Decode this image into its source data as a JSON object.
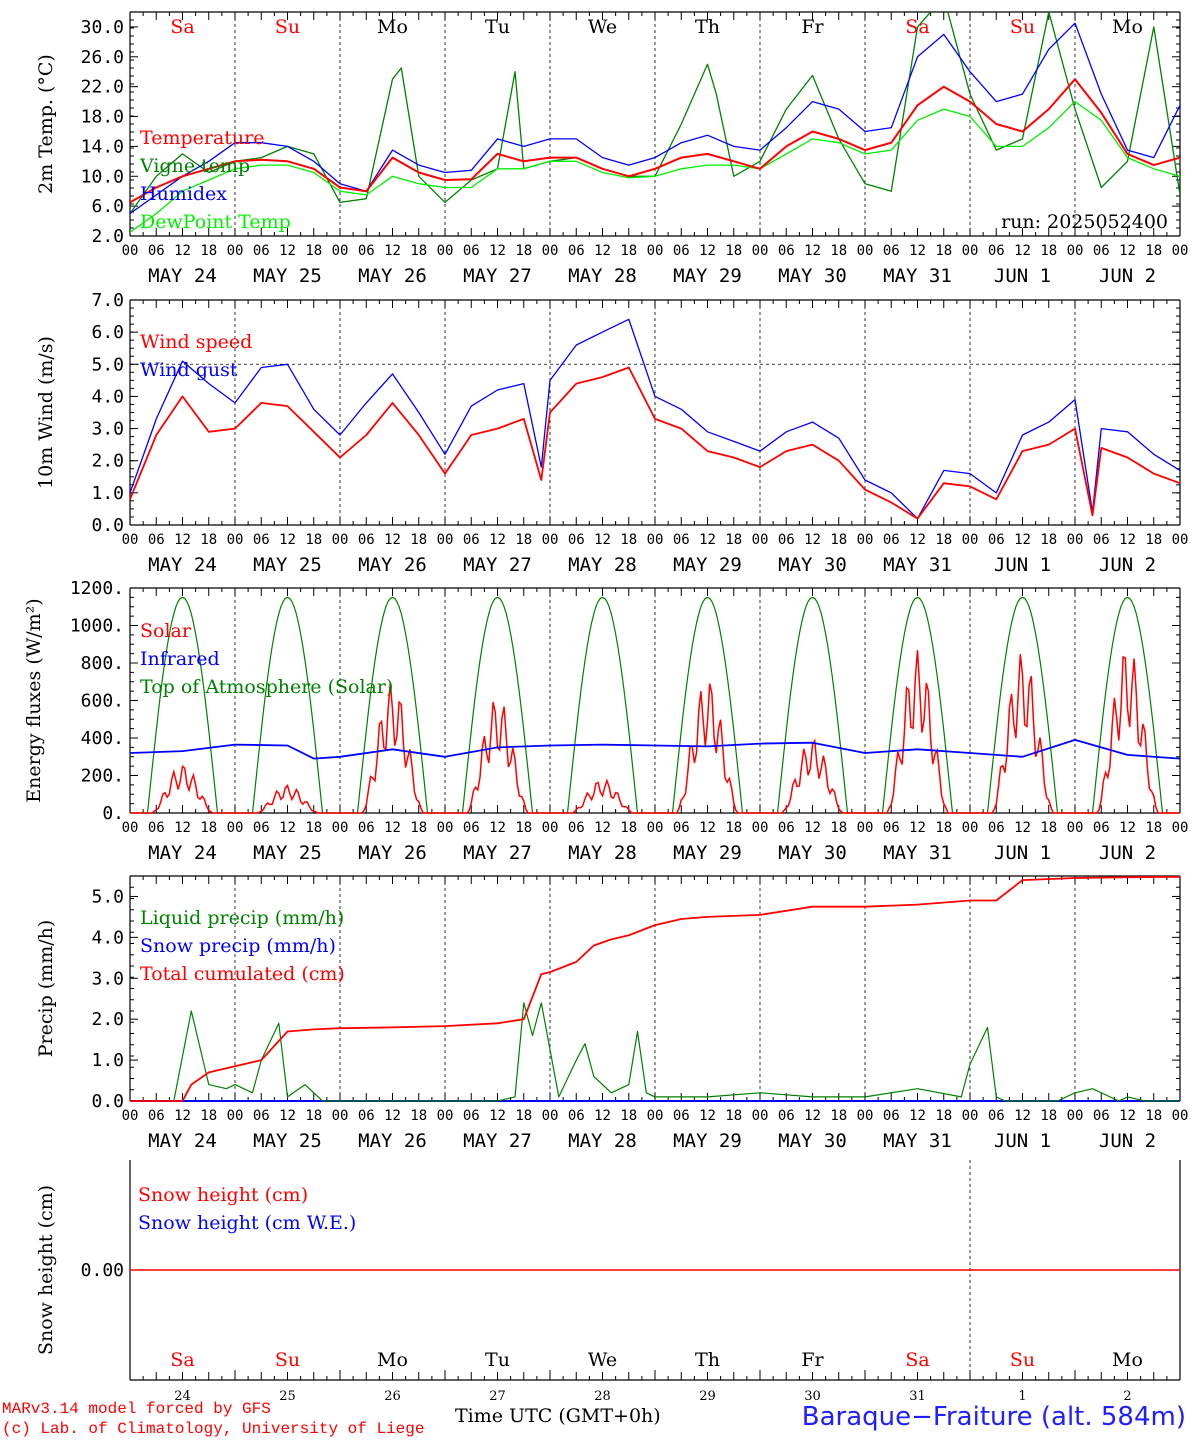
{
  "colors": {
    "red": "#ff0000",
    "green": "#008000",
    "blue": "#0000ff",
    "lightgreen": "#00ee00",
    "axis": "#000000"
  },
  "day_letters": [
    {
      "label": "Sa",
      "color": "#ff0000"
    },
    {
      "label": "Su",
      "color": "#ff0000"
    },
    {
      "label": "Mo",
      "color": "#000000"
    },
    {
      "label": "Tu",
      "color": "#000000"
    },
    {
      "label": "We",
      "color": "#000000"
    },
    {
      "label": "Th",
      "color": "#000000"
    },
    {
      "label": "Fr",
      "color": "#000000"
    },
    {
      "label": "Sa",
      "color": "#ff0000"
    },
    {
      "label": "Su",
      "color": "#ff0000"
    },
    {
      "label": "Mo",
      "color": "#000000"
    }
  ],
  "hour_ticks": [
    "00",
    "06",
    "12",
    "18"
  ],
  "date_labels": [
    "MAY 24",
    "MAY 25",
    "MAY 26",
    "MAY 27",
    "MAY 28",
    "MAY 29",
    "MAY 30",
    "MAY 31",
    "JUN  1",
    "JUN  2"
  ],
  "bottom_day_numbers": [
    "24",
    "25",
    "26",
    "27",
    "28",
    "29",
    "30",
    "31",
    "1",
    "2"
  ],
  "footer": {
    "model": "MARv3.14 model forced by GFS",
    "lab": "(c) Lab. of Climatology, University of Liege",
    "time_label": "Time UTC (GMT+0h)",
    "station": "Baraque−Fraiture (alt. 584m)"
  },
  "chart_data": [
    {
      "type": "line",
      "ylabel": "2m Temp. (°C)",
      "ylim": [
        2,
        32
      ],
      "yticks": [
        "2.0",
        "6.0",
        "10.0",
        "14.0",
        "18.0",
        "22.0",
        "26.0",
        "30.0"
      ],
      "annotation": "run: 2025052400",
      "x_unit": "hours since 2025-05-24 00 UTC",
      "series": [
        {
          "name": "Temperature",
          "color": "#ff0000",
          "x": [
            0,
            6,
            12,
            18,
            24,
            30,
            36,
            42,
            48,
            54,
            60,
            66,
            72,
            78,
            84,
            90,
            96,
            102,
            108,
            114,
            120,
            126,
            132,
            138,
            144,
            150,
            156,
            162,
            168,
            174,
            180,
            186,
            192,
            198,
            204,
            210,
            216,
            222,
            228,
            234,
            240
          ],
          "y": [
            6.5,
            8.5,
            10,
            11,
            12,
            12.2,
            12,
            11,
            8.5,
            8,
            12.5,
            10.5,
            9.5,
            9.6,
            13,
            12,
            12.5,
            12.5,
            11,
            10,
            11,
            12.5,
            13,
            12,
            11,
            14,
            16,
            15,
            13.5,
            14.5,
            19.5,
            22,
            20,
            17,
            16,
            19,
            23,
            18.5,
            13,
            11.5,
            12.5
          ]
        },
        {
          "name": "Vigne temp",
          "color": "#008000",
          "x": [
            0,
            6,
            12,
            18,
            24,
            30,
            36,
            42,
            48,
            54,
            60,
            62,
            66,
            72,
            78,
            84,
            88,
            90,
            96,
            102,
            108,
            114,
            120,
            126,
            132,
            134,
            138,
            144,
            150,
            156,
            162,
            168,
            174,
            180,
            186,
            192,
            198,
            204,
            210,
            216,
            222,
            228,
            234,
            240
          ],
          "y": [
            5,
            10,
            13,
            10.5,
            12,
            12.5,
            14,
            13,
            6.5,
            7,
            23,
            24.5,
            10,
            6.5,
            9.5,
            11,
            24,
            11,
            12,
            12.5,
            11,
            10,
            10,
            17,
            25,
            21,
            10,
            12,
            19,
            23.5,
            15,
            9,
            8,
            30,
            34,
            21,
            13.5,
            15,
            32,
            19,
            8.5,
            12,
            30,
            7.5
          ]
        },
        {
          "name": "Humidex",
          "color": "#0000ff",
          "x": [
            0,
            6,
            12,
            18,
            24,
            30,
            36,
            42,
            48,
            54,
            60,
            66,
            72,
            78,
            84,
            90,
            96,
            102,
            108,
            114,
            120,
            126,
            132,
            138,
            144,
            150,
            156,
            162,
            168,
            174,
            180,
            186,
            192,
            198,
            204,
            210,
            216,
            222,
            228,
            234,
            240
          ],
          "y": [
            5,
            7.5,
            10,
            12,
            14.5,
            14.5,
            14,
            12,
            9,
            8,
            13.5,
            11.5,
            10.5,
            10.8,
            15,
            14,
            15,
            15,
            12.5,
            11.5,
            12.5,
            14.5,
            15.5,
            14,
            13.5,
            16.5,
            20,
            19,
            16,
            16.5,
            26,
            29,
            24,
            20,
            21,
            27,
            30.5,
            21,
            13.5,
            12.5,
            19.5
          ]
        },
        {
          "name": "DewPoint Temp",
          "color": "#00ee00",
          "x": [
            0,
            6,
            12,
            18,
            24,
            30,
            36,
            42,
            48,
            54,
            60,
            66,
            72,
            78,
            84,
            90,
            96,
            102,
            108,
            114,
            120,
            126,
            132,
            138,
            144,
            150,
            156,
            162,
            168,
            174,
            180,
            186,
            192,
            198,
            204,
            210,
            216,
            222,
            228,
            234,
            240
          ],
          "y": [
            2.5,
            5,
            8,
            9.5,
            11,
            11.5,
            11.5,
            10.5,
            8,
            7.5,
            10,
            9,
            8.5,
            8.5,
            11,
            11,
            12,
            12,
            10.5,
            9.8,
            10,
            11,
            11.5,
            11.5,
            11,
            13,
            15,
            14.5,
            13,
            13.5,
            17.5,
            19,
            18,
            14,
            14,
            16.5,
            20,
            17.5,
            12.5,
            11,
            10
          ]
        }
      ]
    },
    {
      "type": "line",
      "ylabel": "10m Wind (m/s)",
      "ylim": [
        0,
        7
      ],
      "yticks": [
        "0.0",
        "1.0",
        "2.0",
        "3.0",
        "4.0",
        "5.0",
        "6.0",
        "7.0"
      ],
      "reference_line": 5,
      "series": [
        {
          "name": "Wind speed",
          "color": "#ff0000",
          "x": [
            0,
            6,
            12,
            18,
            24,
            30,
            36,
            42,
            48,
            54,
            60,
            66,
            72,
            78,
            84,
            90,
            94,
            96,
            102,
            108,
            114,
            120,
            126,
            132,
            138,
            144,
            150,
            156,
            162,
            168,
            174,
            180,
            186,
            192,
            198,
            204,
            210,
            216,
            220,
            222,
            228,
            234,
            240
          ],
          "y": [
            0.8,
            2.8,
            4,
            2.9,
            3,
            3.8,
            3.7,
            2.9,
            2.1,
            2.8,
            3.8,
            2.8,
            1.6,
            2.8,
            3,
            3.3,
            1.4,
            3.5,
            4.4,
            4.6,
            4.9,
            3.3,
            3.0,
            2.3,
            2.1,
            1.8,
            2.3,
            2.5,
            2.0,
            1.1,
            0.7,
            0.2,
            1.3,
            1.2,
            0.8,
            2.3,
            2.5,
            3.0,
            0.3,
            2.4,
            2.1,
            1.6,
            1.3
          ]
        },
        {
          "name": "Wind gust",
          "color": "#0000ff",
          "x": [
            0,
            6,
            12,
            18,
            24,
            30,
            36,
            42,
            48,
            54,
            60,
            66,
            72,
            78,
            84,
            90,
            94,
            96,
            102,
            108,
            114,
            120,
            126,
            132,
            138,
            144,
            150,
            156,
            162,
            168,
            174,
            180,
            186,
            192,
            198,
            204,
            210,
            216,
            220,
            222,
            228,
            234,
            240
          ],
          "y": [
            1.0,
            3.3,
            5.1,
            4.4,
            3.8,
            4.9,
            5.0,
            3.6,
            2.8,
            3.8,
            4.7,
            3.5,
            2.2,
            3.7,
            4.2,
            4.4,
            1.8,
            4.5,
            5.6,
            6.0,
            6.4,
            4.0,
            3.6,
            2.9,
            2.6,
            2.3,
            2.9,
            3.2,
            2.7,
            1.4,
            1.0,
            0.2,
            1.7,
            1.6,
            1.0,
            2.8,
            3.2,
            3.9,
            0.4,
            3.0,
            2.9,
            2.2,
            1.7
          ]
        }
      ]
    },
    {
      "type": "line",
      "ylabel": "Energy fluxes (W/m²)",
      "ylim": [
        0,
        1200
      ],
      "yticks": [
        "0.",
        "200.",
        "400.",
        "600.",
        "800.",
        "1000.",
        "1200."
      ],
      "series": [
        {
          "name": "Solar",
          "color": "#ff0000",
          "peaks": [
            260,
            150,
            700,
            620,
            180,
            720,
            400,
            870,
            860,
            900
          ]
        },
        {
          "name": "Infrared",
          "color": "#0000ff",
          "x": [
            0,
            12,
            24,
            36,
            42,
            48,
            60,
            72,
            84,
            96,
            108,
            120,
            132,
            144,
            156,
            168,
            180,
            192,
            204,
            216,
            228,
            240
          ],
          "y": [
            320,
            330,
            365,
            360,
            290,
            300,
            340,
            300,
            350,
            360,
            365,
            360,
            355,
            370,
            375,
            320,
            340,
            320,
            300,
            390,
            310,
            290
          ]
        },
        {
          "name": "Top of Atmosphere (Solar)",
          "color": "#008000",
          "peak": 1150,
          "sunrise_h": 4,
          "sunset_h": 20
        }
      ]
    },
    {
      "type": "line",
      "ylabel": "Precip (mm/h)",
      "ylim": [
        0,
        5.5
      ],
      "yticks": [
        "0.0",
        "1.0",
        "2.0",
        "3.0",
        "4.0",
        "5.0"
      ],
      "series": [
        {
          "name": "Liquid precip (mm/h)",
          "color": "#008000",
          "x": [
            0,
            10,
            14,
            18,
            22,
            24,
            28,
            30,
            34,
            36,
            40,
            44,
            48,
            72,
            84,
            88,
            90,
            92,
            94,
            98,
            102,
            104,
            106,
            110,
            114,
            116,
            118,
            120,
            132,
            144,
            156,
            168,
            180,
            190,
            192,
            196,
            198,
            200,
            204,
            212,
            216,
            220,
            226,
            228,
            232,
            240
          ],
          "y": [
            0,
            0,
            2.2,
            0.4,
            0.3,
            0.4,
            0.2,
            1.0,
            1.9,
            0.1,
            0.4,
            0,
            0,
            0,
            0,
            0.1,
            2.4,
            1.6,
            2.4,
            0.1,
            1.0,
            1.4,
            0.6,
            0.2,
            0.4,
            1.7,
            0.2,
            0.1,
            0.1,
            0.2,
            0.1,
            0.1,
            0.3,
            0.1,
            0.9,
            1.8,
            0.1,
            0,
            0,
            0,
            0.2,
            0.3,
            0,
            0.1,
            0,
            0
          ]
        },
        {
          "name": "Snow precip (mm/h)",
          "color": "#0000ff",
          "x": [
            0,
            240
          ],
          "y": [
            0,
            0
          ]
        },
        {
          "name": "Total cumulated (cm)",
          "color": "#ff0000",
          "x": [
            0,
            12,
            14,
            18,
            24,
            30,
            36,
            42,
            48,
            60,
            72,
            84,
            90,
            94,
            96,
            102,
            106,
            110,
            114,
            120,
            126,
            132,
            144,
            156,
            168,
            180,
            192,
            198,
            204,
            216,
            228,
            240
          ],
          "y": [
            0,
            0,
            0.4,
            0.7,
            0.85,
            1.0,
            1.7,
            1.75,
            1.78,
            1.8,
            1.83,
            1.9,
            2.0,
            3.1,
            3.15,
            3.4,
            3.8,
            3.95,
            4.05,
            4.3,
            4.45,
            4.5,
            4.55,
            4.75,
            4.75,
            4.8,
            4.9,
            4.9,
            5.4,
            5.45,
            5.47,
            5.48
          ]
        }
      ]
    },
    {
      "type": "line",
      "ylabel": "Snow height (cm)",
      "yticks": [
        "0.00"
      ],
      "series": [
        {
          "name": "Snow height (cm)",
          "color": "#ff0000",
          "x": [
            0,
            240
          ],
          "y": [
            0,
            0
          ]
        },
        {
          "name": "Snow height (cm W.E.)",
          "color": "#0000ff",
          "x": [
            0,
            240
          ],
          "y": [
            0,
            0
          ]
        }
      ]
    }
  ]
}
